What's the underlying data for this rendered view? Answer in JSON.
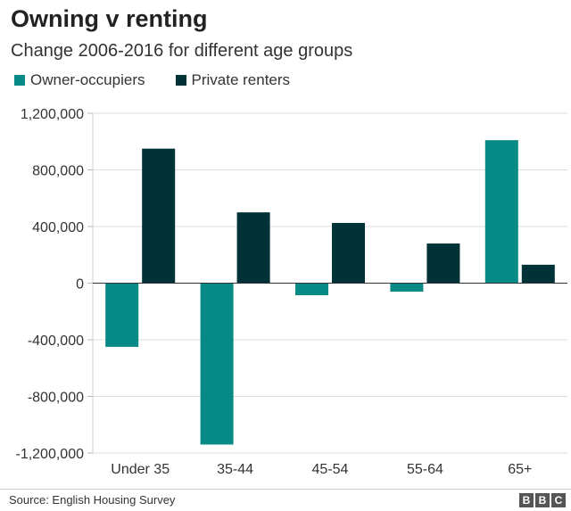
{
  "chart_data": {
    "type": "bar",
    "title": "Owning v renting",
    "subtitle": "Change 2006-2016 for different age groups",
    "categories": [
      "Under 35",
      "35-44",
      "45-54",
      "55-64",
      "65+"
    ],
    "series": [
      {
        "name": "Owner-occupiers",
        "color": "#078a85",
        "values": [
          -450000,
          -1140000,
          -85000,
          -60000,
          1010000
        ]
      },
      {
        "name": "Private renters",
        "color": "#003237",
        "values": [
          950000,
          500000,
          425000,
          280000,
          130000
        ]
      }
    ],
    "ylim": [
      -1200000,
      1200000
    ],
    "yticks": [
      1200000,
      800000,
      400000,
      0,
      -400000,
      -800000,
      -1200000
    ],
    "ytick_labels": [
      "1,200,000",
      "800,000",
      "400,000",
      "0",
      "-400,000",
      "-800,000",
      "-1,200,000"
    ],
    "xlabel": "",
    "ylabel": "",
    "grid": true,
    "legend_position": "top-left"
  },
  "footer": {
    "source": "Source: English Housing Survey",
    "logo_letters": [
      "B",
      "B",
      "C"
    ]
  }
}
